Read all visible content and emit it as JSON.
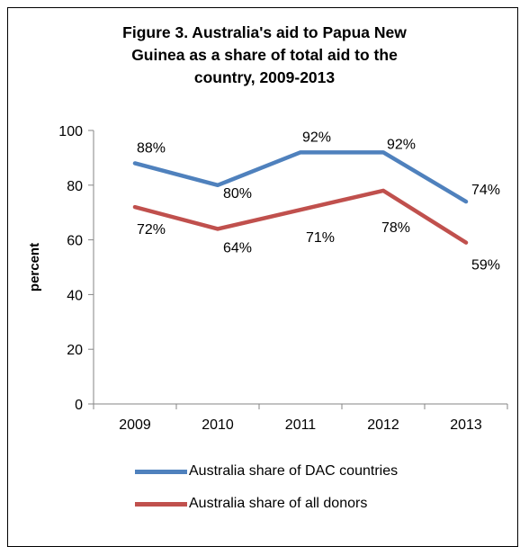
{
  "chart_data": {
    "type": "line",
    "title_lines": [
      "Figure 3. Australia's aid to Papua New",
      "Guinea as a share of total aid to the",
      "country, 2009-2013"
    ],
    "xlabel": "",
    "ylabel": "percent",
    "categories": [
      "2009",
      "2010",
      "2011",
      "2012",
      "2013"
    ],
    "ylim": [
      0,
      100
    ],
    "yticks": [
      0,
      20,
      40,
      60,
      80,
      100
    ],
    "grid": false,
    "legend_position": "bottom",
    "series": [
      {
        "name": "Australia share of DAC countries",
        "color": "#4F81BD",
        "values": [
          88,
          80,
          92,
          92,
          74
        ],
        "labels": [
          "88%",
          "80%",
          "92%",
          "92%",
          "74%"
        ]
      },
      {
        "name": "Australia share of all donors",
        "color": "#C0504D",
        "values": [
          72,
          64,
          71,
          78,
          59
        ],
        "labels": [
          "72%",
          "64%",
          "71%",
          "78%",
          "59%"
        ]
      }
    ]
  }
}
